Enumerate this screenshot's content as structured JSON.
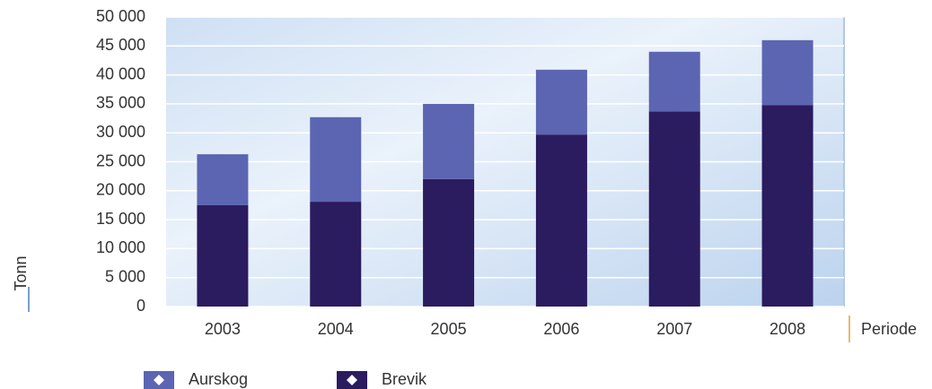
{
  "chart_data": {
    "type": "stacked-bar",
    "y_label": "Tonn",
    "x_label": "Periode",
    "categories": [
      "2003",
      "2004",
      "2005",
      "2006",
      "2007",
      "2008"
    ],
    "series": [
      {
        "name": "Aurskog",
        "color": "#5b65b1",
        "values": [
          8800,
          14600,
          13000,
          11200,
          10300,
          11200
        ]
      },
      {
        "name": "Brevik",
        "color": "#2b1b5f",
        "values": [
          17500,
          18100,
          22000,
          29700,
          33700,
          34800
        ]
      }
    ],
    "ylim": [
      0,
      50000
    ],
    "yticks": [
      0,
      {
        "value": 5000,
        "label": "5 000"
      },
      {
        "value": 10000,
        "label": "10 000"
      },
      {
        "value": 15000,
        "label": "15 000"
      },
      {
        "value": 20000,
        "label": "20 000"
      },
      {
        "value": 25000,
        "label": "25 000"
      },
      {
        "value": 30000,
        "label": "30 000"
      },
      {
        "value": 35000,
        "label": "35 000"
      },
      {
        "value": 40000,
        "label": "40 000"
      },
      {
        "value": 45000,
        "label": "45 000"
      },
      {
        "value": 50000,
        "label": "50 000"
      }
    ],
    "grid": true
  }
}
